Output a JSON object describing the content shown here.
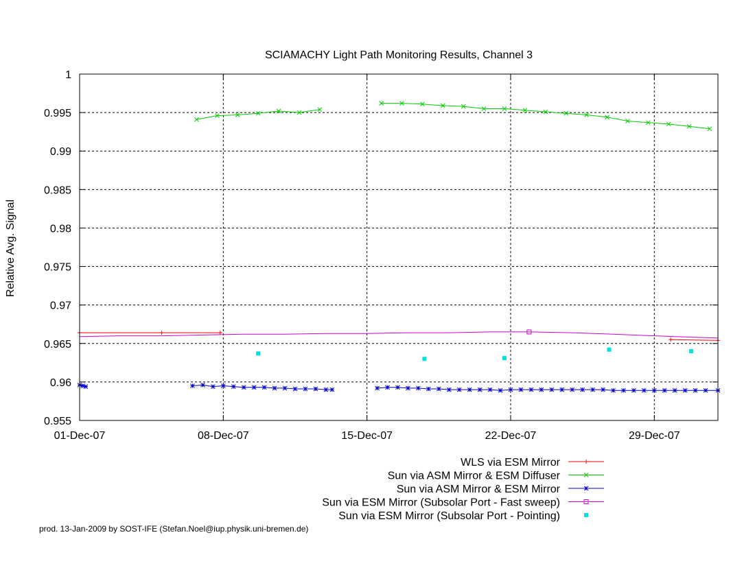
{
  "chart_data": {
    "type": "line",
    "title": "SCIAMACHY Light Path Monitoring Results, Channel 3",
    "ylabel": "Relative Avg. Signal",
    "xlabel": "",
    "x_unit": "days since 01-Dec-07 00:00",
    "xlim": [
      0,
      31.1
    ],
    "ylim": [
      0.955,
      1.0
    ],
    "grid": true,
    "legend_position": "below plot, right-aligned",
    "xticks": [
      {
        "v": 0,
        "label": "01-Dec-07"
      },
      {
        "v": 7,
        "label": "08-Dec-07"
      },
      {
        "v": 14,
        "label": "15-Dec-07"
      },
      {
        "v": 21,
        "label": "22-Dec-07"
      },
      {
        "v": 28,
        "label": "29-Dec-07"
      }
    ],
    "yticks": [
      {
        "v": 0.955,
        "label": "0.955"
      },
      {
        "v": 0.96,
        "label": "0.96"
      },
      {
        "v": 0.965,
        "label": "0.965"
      },
      {
        "v": 0.97,
        "label": "0.97"
      },
      {
        "v": 0.975,
        "label": "0.975"
      },
      {
        "v": 0.98,
        "label": "0.98"
      },
      {
        "v": 0.985,
        "label": "0.985"
      },
      {
        "v": 0.99,
        "label": "0.99"
      },
      {
        "v": 0.995,
        "label": "0.995"
      },
      {
        "v": 1.0,
        "label": "1"
      }
    ],
    "series": [
      {
        "name": "WLS via ESM Mirror",
        "color": "#ff0000",
        "marker": "plus",
        "style": "linespoints",
        "segments": [
          [
            [
              0.0,
              0.9664
            ],
            [
              4.0,
              0.9664
            ],
            [
              6.85,
              0.9664
            ]
          ],
          [
            [
              28.8,
              0.9655
            ],
            [
              31.1,
              0.9654
            ]
          ]
        ]
      },
      {
        "name": "Sun via ASM Mirror & ESM Diffuser",
        "color": "#00cc00",
        "marker": "x",
        "style": "linespoints",
        "segments": [
          [
            [
              5.7,
              0.9941
            ],
            [
              6.7,
              0.9946
            ],
            [
              7.7,
              0.9947
            ],
            [
              8.7,
              0.9949
            ],
            [
              9.7,
              0.9952
            ],
            [
              10.7,
              0.995
            ],
            [
              11.7,
              0.9954
            ]
          ],
          [
            [
              14.7,
              0.9962
            ],
            [
              15.7,
              0.9962
            ],
            [
              16.7,
              0.9961
            ],
            [
              17.7,
              0.9959
            ],
            [
              18.7,
              0.9958
            ],
            [
              19.7,
              0.9955
            ],
            [
              20.7,
              0.9955
            ],
            [
              21.7,
              0.9953
            ],
            [
              22.7,
              0.9951
            ],
            [
              23.7,
              0.9949
            ],
            [
              24.7,
              0.9947
            ],
            [
              25.7,
              0.9944
            ],
            [
              26.7,
              0.9939
            ],
            [
              27.7,
              0.9937
            ],
            [
              28.7,
              0.9935
            ],
            [
              29.7,
              0.9932
            ],
            [
              30.7,
              0.9929
            ]
          ]
        ]
      },
      {
        "name": "Sun via ASM Mirror & ESM Mirror",
        "color": "#0000cc",
        "marker": "star",
        "style": "linespoints",
        "segments": [
          [
            [
              0.0,
              0.9596
            ],
            [
              0.15,
              0.9595
            ],
            [
              0.3,
              0.9594
            ]
          ],
          [
            [
              5.5,
              0.9595
            ],
            [
              6.0,
              0.9596
            ],
            [
              6.5,
              0.9594
            ],
            [
              7.0,
              0.9595
            ],
            [
              7.5,
              0.9594
            ],
            [
              8.0,
              0.9593
            ],
            [
              8.5,
              0.9593
            ],
            [
              9.0,
              0.9593
            ],
            [
              9.5,
              0.9592
            ],
            [
              10.0,
              0.9592
            ],
            [
              10.5,
              0.9591
            ],
            [
              11.0,
              0.9591
            ],
            [
              11.5,
              0.9591
            ],
            [
              12.0,
              0.959
            ],
            [
              12.3,
              0.959
            ]
          ],
          [
            [
              14.5,
              0.9592
            ],
            [
              15.0,
              0.9593
            ],
            [
              15.5,
              0.9593
            ],
            [
              16.0,
              0.9592
            ],
            [
              16.5,
              0.9592
            ],
            [
              17.0,
              0.9591
            ],
            [
              17.5,
              0.9591
            ],
            [
              18.0,
              0.959
            ],
            [
              18.5,
              0.959
            ],
            [
              19.0,
              0.959
            ],
            [
              19.5,
              0.959
            ],
            [
              20.0,
              0.959
            ],
            [
              20.5,
              0.9589
            ],
            [
              21.0,
              0.959
            ],
            [
              21.5,
              0.959
            ],
            [
              22.0,
              0.959
            ],
            [
              22.5,
              0.959
            ],
            [
              23.0,
              0.959
            ],
            [
              23.5,
              0.959
            ],
            [
              24.0,
              0.959
            ],
            [
              24.5,
              0.959
            ],
            [
              25.0,
              0.959
            ],
            [
              25.5,
              0.959
            ],
            [
              26.0,
              0.9589
            ],
            [
              26.5,
              0.9589
            ],
            [
              27.0,
              0.9589
            ],
            [
              27.5,
              0.9589
            ],
            [
              28.0,
              0.9589
            ],
            [
              28.5,
              0.9589
            ],
            [
              29.0,
              0.9589
            ],
            [
              29.5,
              0.9589
            ],
            [
              30.0,
              0.9589
            ],
            [
              30.5,
              0.9589
            ],
            [
              31.1,
              0.9589
            ]
          ]
        ]
      },
      {
        "name": "Sun via ESM Mirror (Subsolar Port - Fast sweep)",
        "color": "#cc00cc",
        "marker": "square",
        "style": "linespoints",
        "segments": [
          [
            [
              0.0,
              0.9659
            ],
            [
              2.0,
              0.966
            ],
            [
              4.0,
              0.966
            ],
            [
              6.0,
              0.9661
            ],
            [
              8.0,
              0.9662
            ],
            [
              10.0,
              0.9662
            ],
            [
              12.0,
              0.9663
            ],
            [
              14.0,
              0.9663
            ],
            [
              16.0,
              0.9664
            ],
            [
              18.0,
              0.9664
            ],
            [
              20.0,
              0.9665
            ],
            [
              21.9,
              0.9665
            ],
            [
              24.0,
              0.9664
            ],
            [
              26.0,
              0.9662
            ],
            [
              28.0,
              0.966
            ],
            [
              30.0,
              0.9658
            ],
            [
              31.1,
              0.9657
            ]
          ]
        ],
        "markers_at": [
          [
            21.9,
            0.9665
          ]
        ]
      },
      {
        "name": "Sun via ESM Mirror (Subsolar Port - Pointing)",
        "color": "#00e0e0",
        "marker": "filled-square",
        "style": "points",
        "segments": [],
        "points": [
          [
            8.7,
            0.9637
          ],
          [
            16.8,
            0.963
          ],
          [
            20.7,
            0.9631
          ],
          [
            25.8,
            0.9642
          ],
          [
            29.8,
            0.964
          ]
        ]
      }
    ]
  },
  "footer": {
    "text": "prod. 13-Jan-2009 by SOST-IFE (Stefan.Noel@iup.physik.uni-bremen.de)"
  }
}
